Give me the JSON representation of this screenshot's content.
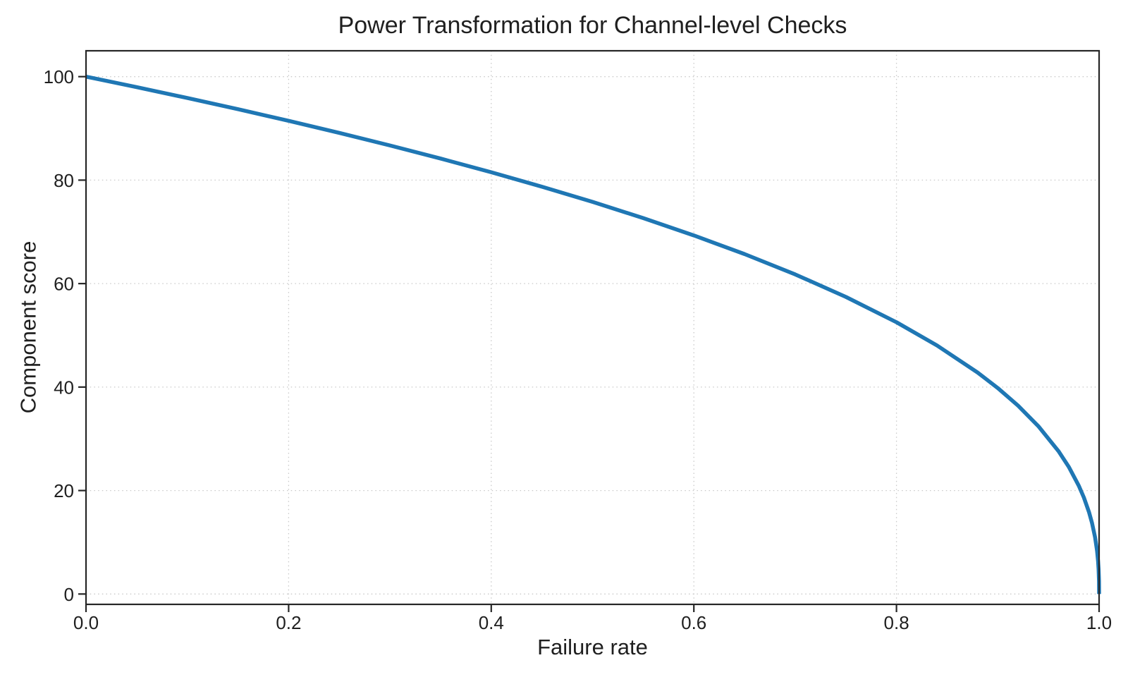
{
  "chart_data": {
    "type": "line",
    "title": "Power Transformation for Channel-level Checks",
    "xlabel": "Failure rate",
    "ylabel": "Component score",
    "xlim": [
      0,
      1
    ],
    "ylim": [
      -2,
      105
    ],
    "xticks": [
      0,
      0.2,
      0.4,
      0.6,
      0.8,
      1.0
    ],
    "xtick_labels": [
      "0.0",
      "0.2",
      "0.4",
      "0.6",
      "0.8",
      "1.0"
    ],
    "yticks": [
      0,
      20,
      40,
      60,
      80,
      100
    ],
    "ytick_labels": [
      "0",
      "20",
      "40",
      "60",
      "80",
      "100"
    ],
    "grid": true,
    "grid_style": "dotted",
    "legend_position": "none",
    "colors": {
      "line": "#1f77b4",
      "grid": "#c9c9c9",
      "spine": "#262626",
      "text": "#1f1f1f"
    },
    "series": [
      {
        "name": "component-score-curve",
        "x": [
          0,
          0.05,
          0.1,
          0.15,
          0.2,
          0.25,
          0.3,
          0.35,
          0.4,
          0.45,
          0.5,
          0.55,
          0.6,
          0.65,
          0.7,
          0.75,
          0.8,
          0.84,
          0.88,
          0.9,
          0.92,
          0.94,
          0.96,
          0.97,
          0.98,
          0.985,
          0.99,
          0.993,
          0.996,
          0.998,
          0.999,
          0.9995,
          0.9999,
          1.0
        ],
        "y": [
          100,
          97.97,
          95.87,
          93.71,
          91.46,
          89.13,
          86.7,
          84.17,
          81.52,
          78.73,
          75.79,
          72.66,
          69.31,
          65.71,
          61.78,
          57.43,
          52.53,
          48.04,
          42.82,
          39.81,
          36.41,
          32.45,
          27.59,
          24.6,
          20.91,
          18.64,
          15.85,
          13.74,
          10.99,
          8.33,
          6.31,
          4.78,
          2.51,
          0
        ]
      }
    ]
  }
}
